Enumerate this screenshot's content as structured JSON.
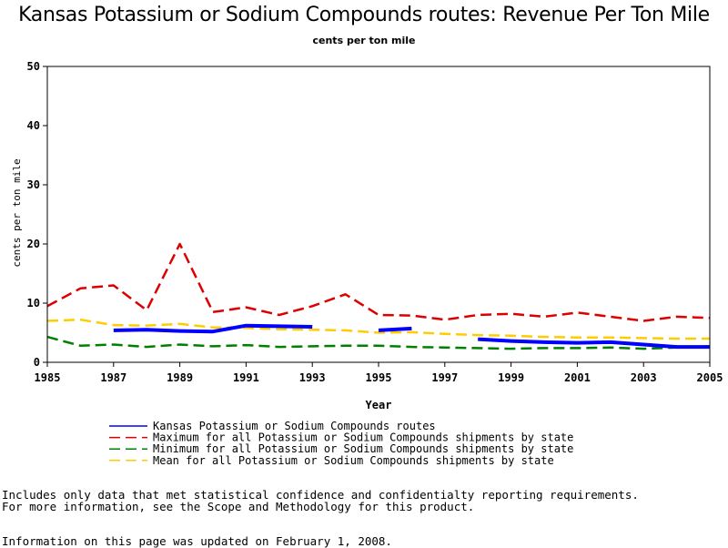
{
  "chart_data": {
    "type": "line",
    "title": "Kansas Potassium or Sodium Compounds routes: Revenue Per Ton Mile",
    "subtitle": "cents per ton mile",
    "xlabel": "Year",
    "ylabel": "cents per ton mile",
    "xlim": [
      1985,
      2005
    ],
    "ylim": [
      0,
      50
    ],
    "xticks": [
      1985,
      1987,
      1989,
      1991,
      1993,
      1995,
      1997,
      1999,
      2001,
      2003,
      2005
    ],
    "yticks": [
      0,
      10,
      20,
      30,
      40,
      50
    ],
    "grid": false,
    "legend_position": "bottom",
    "x": [
      1985,
      1986,
      1987,
      1988,
      1989,
      1990,
      1991,
      1992,
      1993,
      1994,
      1995,
      1996,
      1997,
      1998,
      1999,
      2000,
      2001,
      2002,
      2003,
      2004,
      2005
    ],
    "series": [
      {
        "name": "Kansas Potassium or Sodium Compounds routes",
        "color": "#0000ff",
        "style": "solid",
        "values": [
          null,
          null,
          5.4,
          5.5,
          5.3,
          5.2,
          6.2,
          6.1,
          6.0,
          null,
          5.4,
          5.7,
          null,
          3.9,
          3.6,
          3.4,
          3.3,
          3.4,
          3.0,
          2.6,
          2.6
        ]
      },
      {
        "name": "Maximum for all Potassium or Sodium Compounds shipments by state",
        "color": "#dd0000",
        "style": "dashed",
        "values": [
          9.5,
          12.5,
          13.0,
          8.8,
          20.0,
          8.5,
          9.3,
          8.0,
          9.5,
          11.5,
          8.0,
          7.9,
          7.2,
          8.0,
          8.2,
          7.7,
          8.4,
          7.7,
          7.0,
          7.7,
          7.5
        ]
      },
      {
        "name": "Minimum for all Potassium or Sodium Compounds shipments by state",
        "color": "#008000",
        "style": "dashed",
        "values": [
          4.3,
          2.8,
          3.0,
          2.6,
          3.0,
          2.7,
          2.9,
          2.6,
          2.7,
          2.8,
          2.8,
          2.6,
          2.5,
          2.4,
          2.3,
          2.4,
          2.4,
          2.5,
          2.3,
          2.5,
          2.7
        ]
      },
      {
        "name": "Mean for all Potassium or Sodium Compounds shipments by state",
        "color": "#ffcc00",
        "style": "dashed",
        "values": [
          7.0,
          7.2,
          6.3,
          6.2,
          6.5,
          5.9,
          5.8,
          5.6,
          5.5,
          5.4,
          5.0,
          5.1,
          4.8,
          4.6,
          4.5,
          4.3,
          4.2,
          4.2,
          4.1,
          4.0,
          4.0
        ]
      }
    ]
  },
  "notes": {
    "line1": "Includes only data that met statistical confidence and confidentialty reporting requirements.",
    "line2": "For more information, see the Scope and Methodology for this product.",
    "updated": "Information on this page was updated on February 1, 2008."
  }
}
